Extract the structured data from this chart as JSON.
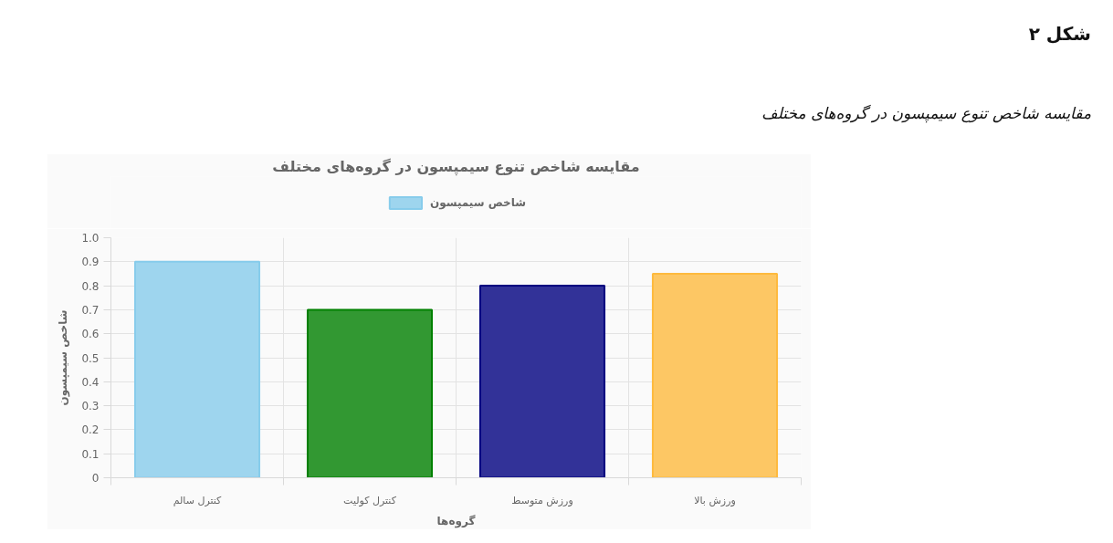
{
  "chart_data": {
    "type": "bar",
    "title": "مقایسه شاخص تنوع سیمپسون در گروه‌های مختلف",
    "subtitle": "مقایسه شاخص تنوع سیمپسون در گروه‌های مختلف",
    "annotations": [
      "شکل ۲"
    ],
    "xlabel": "گروه‌ها",
    "ylabel": "شاخص سیمپسون",
    "categories": [
      "کنترل سالم",
      "کنترل کولیت",
      "ورزش متوسط",
      "ورزش بالا"
    ],
    "series": [
      {
        "name": "شاخص سیمپسون",
        "colors": [
          "#9ed5ee",
          "#329832",
          "#323298",
          "#fdc764"
        ],
        "values": [
          0.9,
          0.7,
          0.8,
          0.85
        ]
      }
    ],
    "ylim": [
      0,
      1
    ],
    "yticks": [
      0,
      0.1,
      0.2,
      0.3,
      0.4,
      0.5,
      0.6,
      0.7,
      0.8,
      0.9,
      {
        "value": 1,
        "label": "1.0"
      }
    ],
    "grid": true,
    "legend": "top"
  }
}
